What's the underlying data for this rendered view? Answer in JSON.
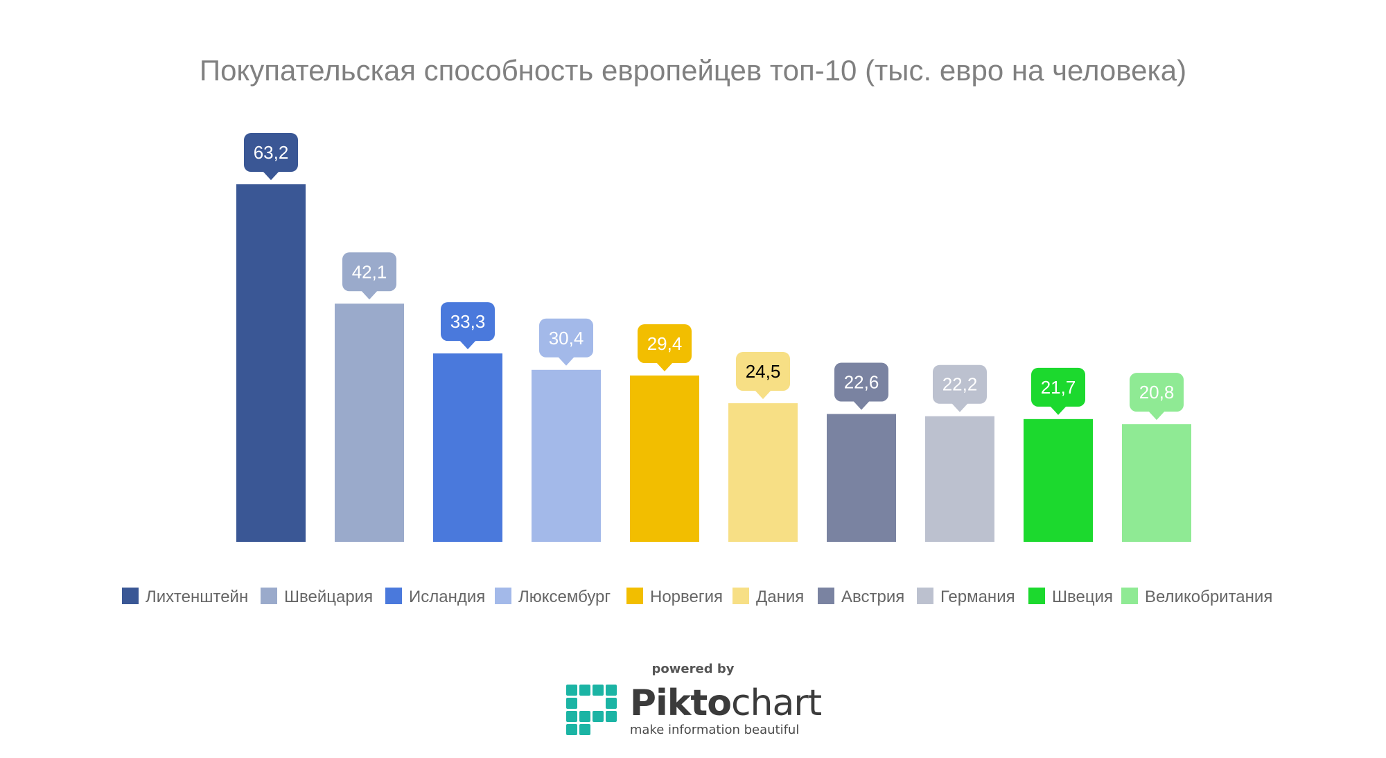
{
  "chart_data": {
    "type": "bar",
    "title": "Покупательская способность европейцев топ-10 (тыс. евро на человека)",
    "categories": [
      "Лихтенштейн",
      "Швейцария",
      "Исландия",
      "Люксембург",
      "Норвегия",
      "Дания",
      "Австрия",
      "Германия",
      "Швеция",
      "Великобритания"
    ],
    "values": [
      63.2,
      42.1,
      33.3,
      30.4,
      29.4,
      24.5,
      22.6,
      22.2,
      21.7,
      20.8
    ],
    "value_labels": [
      "63,2",
      "42,1",
      "33,3",
      "30,4",
      "29,4",
      "24,5",
      "22,6",
      "22,2",
      "21,7",
      "20,8"
    ],
    "colors": [
      "#3a5795",
      "#9aaacb",
      "#4a79dc",
      "#a3b9e9",
      "#f2be00",
      "#f7df85",
      "#7a83a1",
      "#bcc1cf",
      "#1cd92e",
      "#8fea94"
    ],
    "label_text_colors": [
      "#ffffff",
      "#ffffff",
      "#ffffff",
      "#ffffff",
      "#ffffff",
      "#000000",
      "#ffffff",
      "#ffffff",
      "#ffffff",
      "#ffffff"
    ],
    "ylim": [
      0,
      63.2
    ],
    "grid": false,
    "legend": "bottom",
    "xlabel": "",
    "ylabel": ""
  },
  "footer": {
    "powered_by": "powered by",
    "brand_part1": "Pikto",
    "brand_part2": "chart",
    "tagline": "make information beautiful",
    "logo_color": "#1bb4a4"
  }
}
